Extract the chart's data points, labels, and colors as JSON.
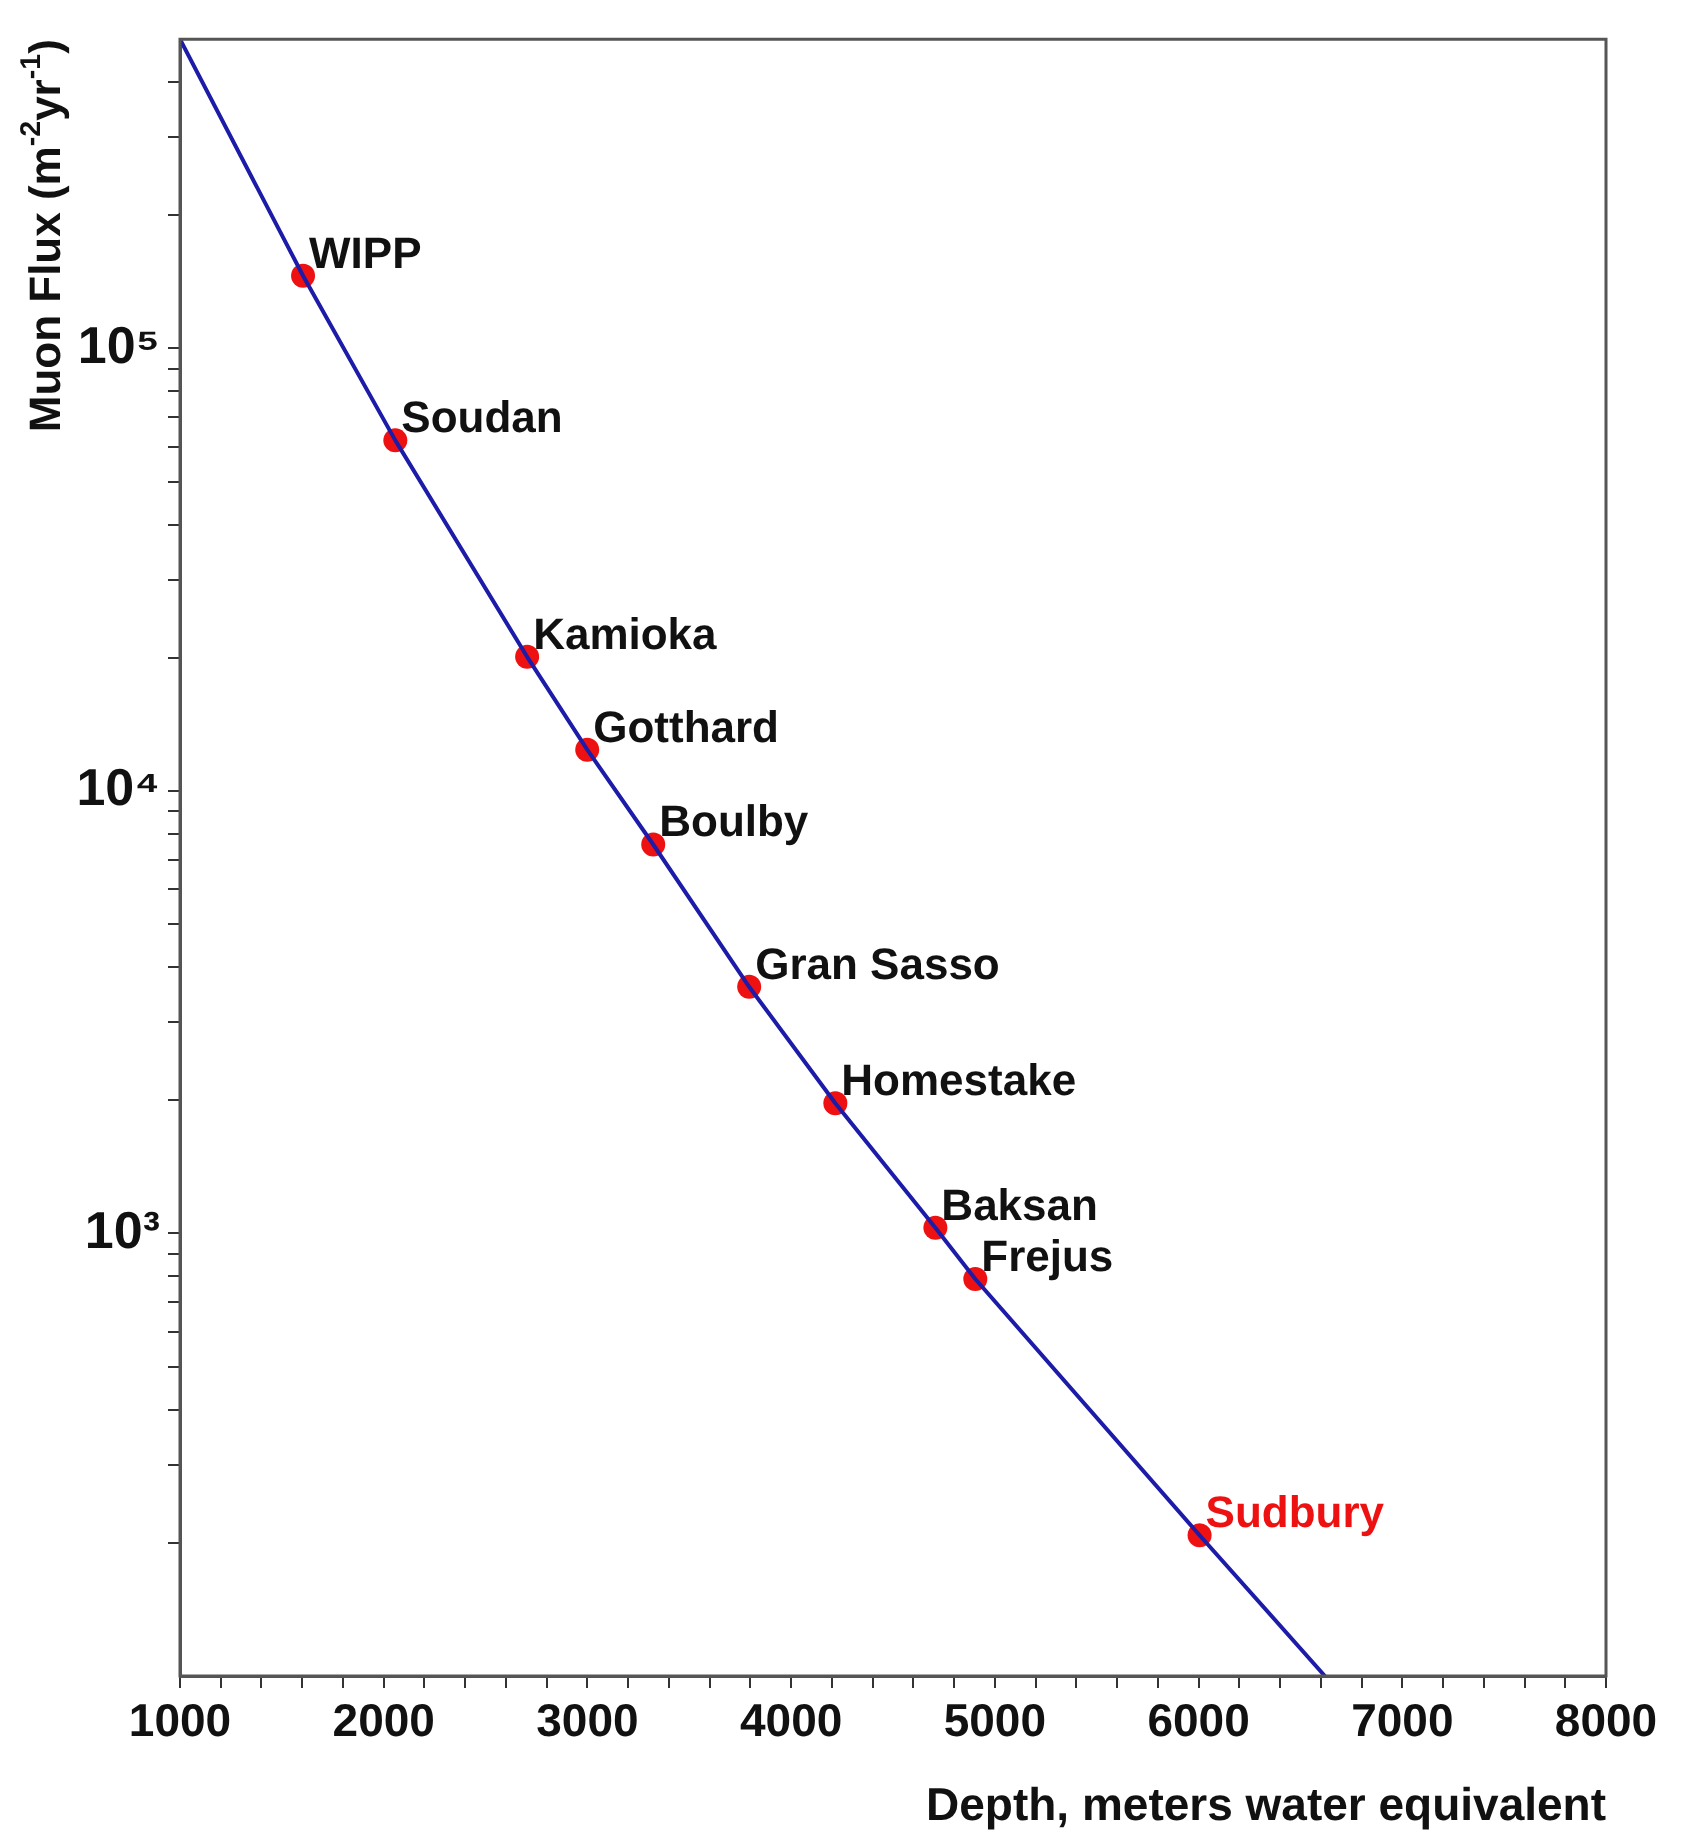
{
  "chart_data": {
    "type": "scatter",
    "xlabel": "Depth, meters water equivalent",
    "ylabel": "Muon Flux (m$^{-2}$yr$^{-1}$)",
    "log": "y",
    "grid": false,
    "legend": false,
    "marker": "circle",
    "xlim": [
      1000,
      8000
    ],
    "xticks": [
      1000,
      {
        "value": 1200,
        "label": null
      },
      {
        "value": 1400,
        "label": null
      },
      {
        "value": 1600,
        "label": null
      },
      {
        "value": 1800,
        "label": null
      },
      2000,
      {
        "value": 2200,
        "label": null
      },
      {
        "value": 2400,
        "label": null
      },
      {
        "value": 2600,
        "label": null
      },
      {
        "value": 2800,
        "label": null
      },
      3000,
      {
        "value": 3200,
        "label": null
      },
      {
        "value": 3400,
        "label": null
      },
      {
        "value": 3600,
        "label": null
      },
      {
        "value": 3800,
        "label": null
      },
      4000,
      {
        "value": 4200,
        "label": null
      },
      {
        "value": 4400,
        "label": null
      },
      {
        "value": 4600,
        "label": null
      },
      {
        "value": 4800,
        "label": null
      },
      5000,
      {
        "value": 5200,
        "label": null
      },
      {
        "value": 5400,
        "label": null
      },
      {
        "value": 5600,
        "label": null
      },
      {
        "value": 5800,
        "label": null
      },
      6000,
      {
        "value": 6200,
        "label": null
      },
      {
        "value": 6400,
        "label": null
      },
      {
        "value": 6600,
        "label": null
      },
      {
        "value": 6800,
        "label": null
      },
      7000,
      {
        "value": 7200,
        "label": null
      },
      {
        "value": 7400,
        "label": null
      },
      {
        "value": 7600,
        "label": null
      },
      {
        "value": 7800,
        "label": null
      },
      8000
    ],
    "ylim": [
      100,
      500000
    ],
    "yticks": [
      {
        "value": 200,
        "label": null
      },
      {
        "value": 300,
        "label": null
      },
      {
        "value": 400,
        "label": null
      },
      {
        "value": 500,
        "label": null
      },
      {
        "value": 600,
        "label": null
      },
      {
        "value": 700,
        "label": null
      },
      {
        "value": 800,
        "label": null
      },
      {
        "value": 900,
        "label": null
      },
      {
        "value": 1000,
        "label": "10³"
      },
      {
        "value": 2000,
        "label": null
      },
      {
        "value": 3000,
        "label": null
      },
      {
        "value": 4000,
        "label": null
      },
      {
        "value": 5000,
        "label": null
      },
      {
        "value": 6000,
        "label": null
      },
      {
        "value": 7000,
        "label": null
      },
      {
        "value": 8000,
        "label": null
      },
      {
        "value": 9000,
        "label": null
      },
      {
        "value": 10000,
        "label": "10⁴"
      },
      {
        "value": 20000,
        "label": null
      },
      {
        "value": 30000,
        "label": null
      },
      {
        "value": 40000,
        "label": null
      },
      {
        "value": 50000,
        "label": null
      },
      {
        "value": 60000,
        "label": null
      },
      {
        "value": 70000,
        "label": null
      },
      {
        "value": 80000,
        "label": null
      },
      {
        "value": 90000,
        "label": null
      },
      {
        "value": 100000,
        "label": "10⁵"
      },
      {
        "value": 200000,
        "label": null
      },
      {
        "value": 300000,
        "label": null
      },
      {
        "value": 400000,
        "label": null
      }
    ],
    "series": [
      {
        "type": "line",
        "marker": "none",
        "color": "#1c1ca8",
        "x": [
          1000,
          1604,
          2057,
          2704,
          2999,
          3323,
          3794,
          4217,
          4708,
          4904,
          6005,
          6620
        ],
        "values": [
          500000,
          146000,
          62000,
          20100,
          12400,
          7570,
          3610,
          1970,
          1030,
          789,
          208,
          100
        ]
      },
      {
        "color": "#ee1111",
        "x": [
          1604,
          2057,
          2704,
          2999,
          3323,
          3794,
          4217,
          4708,
          4904
        ],
        "values": [
          146000,
          62000,
          20100,
          12400,
          7570,
          3610,
          1970,
          1030,
          789
        ]
      },
      {
        "name": "Sudbury",
        "color": "#ee1111",
        "x": [
          6005
        ],
        "values": [
          208
        ]
      }
    ],
    "annotations": [
      {
        "text": "WIPP",
        "x": 1604,
        "y": 146000
      },
      {
        "text": "Soudan",
        "x": 2057,
        "y": 62000
      },
      {
        "text": "Kamioka",
        "x": 2704,
        "y": 20100
      },
      {
        "text": "Gotthard",
        "x": 2999,
        "y": 12400
      },
      {
        "text": "Boulby",
        "x": 3323,
        "y": 7570
      },
      {
        "text": "Gran Sasso",
        "x": 3794,
        "y": 3610
      },
      {
        "text": "Homestake",
        "x": 4217,
        "y": 1970
      },
      {
        "text": "Baksan",
        "x": 4708,
        "y": 1030
      },
      {
        "text": "Frejus",
        "x": 4904,
        "y": 789
      }
    ]
  }
}
